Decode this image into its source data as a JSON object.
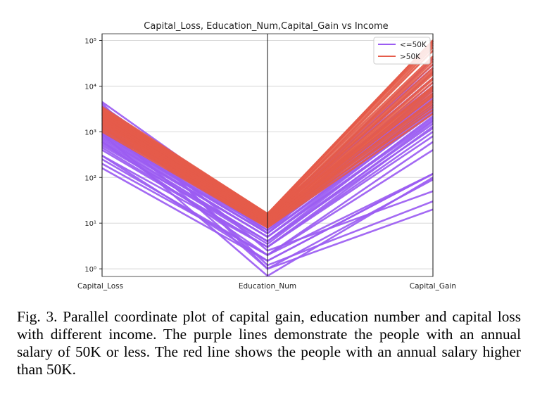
{
  "chart_data": {
    "type": "parallel_coordinates",
    "title": "Capital_Loss, Education_Num,Capital_Gain vs Income",
    "categories": [
      "Capital_Loss",
      "Education_Num",
      "Capital_Gain"
    ],
    "y_scale": "log",
    "ylim": [
      0.68,
      140000
    ],
    "y_ticks": [
      1,
      10,
      100,
      1000,
      10000,
      100000
    ],
    "y_tick_labels": [
      "10⁰",
      "10¹",
      "10²",
      "10³",
      "10⁴",
      "10⁵"
    ],
    "grid": true,
    "legend_position": "top-right",
    "colors": {
      "<=50K": "#9b5cf2",
      ">50K": "#e55b4a"
    },
    "series": [
      {
        "name": "<=50K",
        "color": "#9b5cf2",
        "lines": [
          [
            4500,
            12,
            40000
          ],
          [
            3700,
            11,
            30000
          ],
          [
            3000,
            10,
            20000
          ],
          [
            2500,
            9,
            12000
          ],
          [
            2000,
            9,
            8000
          ],
          [
            1800,
            8,
            6000
          ],
          [
            1600,
            8,
            5000
          ],
          [
            1400,
            7,
            4000
          ],
          [
            1200,
            7,
            3500
          ],
          [
            1000,
            6,
            3000
          ],
          [
            900,
            6,
            2500
          ],
          [
            800,
            5,
            2000
          ],
          [
            700,
            5,
            1800
          ],
          [
            600,
            4,
            1500
          ],
          [
            500,
            4,
            1200
          ],
          [
            400,
            3,
            1000
          ],
          [
            300,
            3,
            800
          ],
          [
            250,
            2,
            600
          ],
          [
            200,
            2,
            400
          ],
          [
            160,
            1.5,
            120
          ],
          [
            3200,
            14,
            25000
          ],
          [
            2800,
            13,
            15000
          ],
          [
            2200,
            12,
            10000
          ],
          [
            1700,
            10,
            7000
          ],
          [
            1300,
            9,
            5500
          ],
          [
            1100,
            8,
            4500
          ],
          [
            950,
            7,
            3800
          ],
          [
            850,
            6,
            3200
          ],
          [
            750,
            5,
            2700
          ],
          [
            650,
            4,
            2200
          ],
          [
            550,
            3.5,
            1700
          ],
          [
            450,
            3,
            1300
          ],
          [
            4200,
            1,
            20
          ],
          [
            3500,
            1.2,
            30
          ],
          [
            2400,
            2.5,
            50
          ],
          [
            1500,
            1,
            90
          ],
          [
            900,
            0.7,
            100
          ],
          [
            600,
            2,
            120
          ],
          [
            300,
            1.5,
            120
          ],
          [
            2600,
            6,
            9000
          ]
        ]
      },
      {
        "name": ">50K",
        "color": "#e55b4a",
        "lines": [
          [
            3500,
            16,
            100000
          ],
          [
            3300,
            15,
            100000
          ],
          [
            3100,
            15,
            90000
          ],
          [
            3000,
            16,
            80000
          ],
          [
            2900,
            14,
            60000
          ],
          [
            2800,
            15,
            45000
          ],
          [
            2700,
            13,
            35000
          ],
          [
            2600,
            14,
            30000
          ],
          [
            2500,
            13,
            25000
          ],
          [
            2400,
            12,
            20000
          ],
          [
            2300,
            13,
            18000
          ],
          [
            2200,
            12,
            15000
          ],
          [
            2100,
            11,
            12000
          ],
          [
            2000,
            12,
            10000
          ],
          [
            1900,
            11,
            9000
          ],
          [
            1800,
            10,
            8000
          ],
          [
            1700,
            11,
            7000
          ],
          [
            1600,
            10,
            6000
          ],
          [
            1500,
            9,
            5000
          ],
          [
            1400,
            10,
            4500
          ],
          [
            1300,
            9,
            4000
          ],
          [
            1200,
            8,
            3500
          ],
          [
            1100,
            9,
            3000
          ],
          [
            1000,
            8,
            2500
          ],
          [
            3200,
            16,
            100000
          ],
          [
            2950,
            15,
            100000
          ],
          [
            2650,
            14,
            70000
          ],
          [
            2350,
            13,
            40000
          ],
          [
            1950,
            12,
            22000
          ],
          [
            1750,
            11,
            14000
          ],
          [
            1550,
            10,
            9500
          ],
          [
            1250,
            9,
            6500
          ]
        ]
      }
    ]
  },
  "caption": "Fig. 3.  Parallel coordinate plot of capital gain, education number and capital loss with different income. The purple lines demonstrate the people with an annual salary of 50K or less. The red line shows the people with an annual salary higher than 50K."
}
